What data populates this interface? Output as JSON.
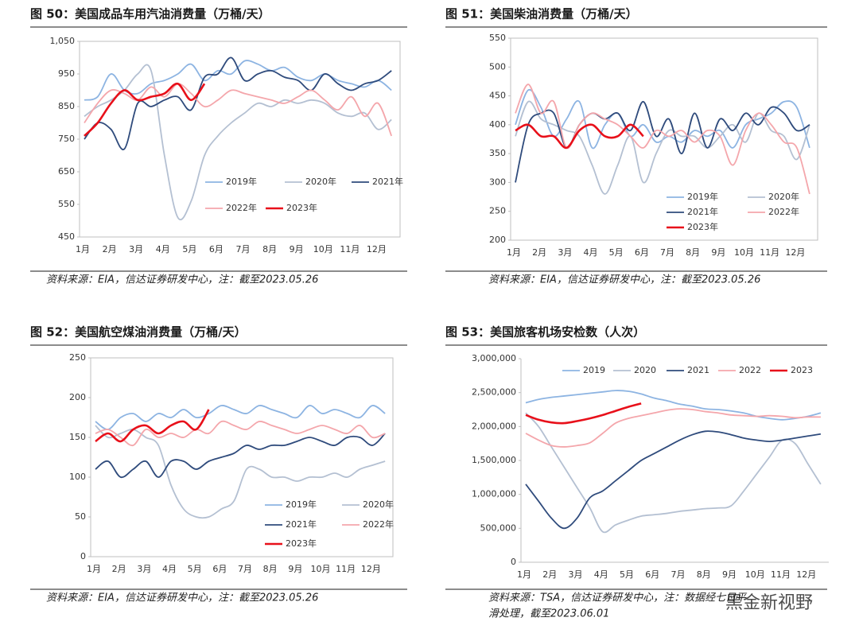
{
  "chart_data": [
    {
      "type": "line",
      "title": "图 50：美国成品车用汽油消费量（万桶/天）",
      "note": "资料来源：EIA，信达证券研发中心，注：截至2023.05.26",
      "categories": [
        "1月",
        null,
        "2月",
        null,
        "3月",
        null,
        "4月",
        null,
        "5月",
        null,
        "6月",
        null,
        "7月",
        null,
        "8月",
        null,
        "9月",
        null,
        "10月",
        null,
        "11月",
        null,
        "12月",
        null
      ],
      "ylim": [
        450,
        1050
      ],
      "yticks": [
        450,
        550,
        650,
        750,
        850,
        950,
        {
          "value": 1050,
          "label": "1,050"
        }
      ],
      "series": [
        {
          "name": "2019年",
          "color": "#8db4e2",
          "values": [
            870,
            880,
            950,
            900,
            890,
            920,
            930,
            950,
            980,
            930,
            960,
            950,
            990,
            980,
            960,
            970,
            940,
            930,
            950,
            930,
            920,
            910,
            930,
            900
          ]
        },
        {
          "name": "2020年",
          "color": "#b4c0d2",
          "values": [
            820,
            850,
            870,
            900,
            950,
            960,
            700,
            510,
            560,
            700,
            760,
            800,
            830,
            860,
            850,
            870,
            860,
            870,
            860,
            830,
            820,
            830,
            780,
            810
          ]
        },
        {
          "name": "2021年",
          "color": "#2f4b7c",
          "values": [
            750,
            800,
            780,
            720,
            860,
            850,
            870,
            880,
            840,
            940,
            950,
            1000,
            930,
            950,
            960,
            940,
            930,
            900,
            950,
            920,
            900,
            920,
            930,
            960
          ]
        },
        {
          "name": "2022年",
          "color": "#f4a6ab",
          "values": [
            800,
            860,
            900,
            890,
            870,
            910,
            880,
            920,
            890,
            850,
            870,
            900,
            890,
            880,
            870,
            860,
            880,
            900,
            870,
            840,
            880,
            820,
            860,
            760
          ]
        },
        {
          "name": "2023年",
          "color": "#e8101a",
          "values": [
            760,
            800,
            860,
            900,
            870,
            880,
            890,
            920,
            870,
            920,
            null,
            null,
            null,
            null,
            null,
            null,
            null,
            null,
            null,
            null,
            null,
            null,
            null,
            null
          ]
        }
      ]
    },
    {
      "type": "line",
      "title": "图 51：美国柴油消费量（万桶/天）",
      "note": "资料来源：EIA，信达证券研发中心，注：截至2023.05.26",
      "categories": [
        "1月",
        null,
        "2月",
        null,
        "3月",
        null,
        "4月",
        null,
        "5月",
        null,
        "6月",
        null,
        "7月",
        null,
        "8月",
        null,
        "9月",
        null,
        "10月",
        null,
        "11月",
        null,
        "12月",
        null
      ],
      "ylim": [
        200,
        550
      ],
      "yticks": [
        200,
        250,
        300,
        350,
        400,
        450,
        500,
        550
      ],
      "series": [
        {
          "name": "2019年",
          "color": "#8db4e2",
          "values": [
            400,
            460,
            430,
            380,
            410,
            440,
            360,
            400,
            420,
            380,
            400,
            370,
            380,
            370,
            390,
            380,
            390,
            360,
            400,
            410,
            420,
            440,
            430,
            360
          ]
        },
        {
          "name": "2020年",
          "color": "#b4c0d2",
          "values": [
            380,
            440,
            410,
            400,
            390,
            380,
            330,
            280,
            330,
            380,
            300,
            350,
            390,
            380,
            380,
            360,
            380,
            400,
            370,
            420,
            390,
            380,
            340,
            400
          ]
        },
        {
          "name": "2021年",
          "color": "#2f4b7c",
          "values": [
            300,
            400,
            420,
            420,
            360,
            400,
            420,
            410,
            420,
            390,
            440,
            380,
            410,
            350,
            420,
            360,
            410,
            390,
            420,
            400,
            430,
            420,
            390,
            400
          ]
        },
        {
          "name": "2022年",
          "color": "#f4a6ab",
          "values": [
            420,
            470,
            420,
            440,
            360,
            400,
            420,
            410,
            400,
            380,
            360,
            390,
            380,
            390,
            370,
            390,
            380,
            330,
            390,
            420,
            400,
            370,
            360,
            280
          ]
        },
        {
          "name": "2023年",
          "color": "#e8101a",
          "values": [
            390,
            400,
            380,
            380,
            360,
            390,
            400,
            380,
            380,
            400,
            380,
            null,
            null,
            null,
            null,
            null,
            null,
            null,
            null,
            null,
            null,
            null,
            null,
            null
          ]
        }
      ]
    },
    {
      "type": "line",
      "title": "图 52：美国航空煤油消费量（万桶/天）",
      "note": "资料来源：EIA，信达证券研发中心，注：截至2023.05.26",
      "categories": [
        "1月",
        null,
        "2月",
        null,
        "3月",
        null,
        "4月",
        null,
        "5月",
        null,
        "6月",
        null,
        "7月",
        null,
        "8月",
        null,
        "9月",
        null,
        "10月",
        null,
        "11月",
        null,
        "12月",
        null
      ],
      "ylim": [
        0,
        250
      ],
      "yticks": [
        0,
        50,
        100,
        150,
        200,
        250
      ],
      "series": [
        {
          "name": "2019年",
          "color": "#8db4e2",
          "values": [
            170,
            160,
            175,
            180,
            170,
            180,
            175,
            185,
            175,
            180,
            190,
            185,
            180,
            190,
            185,
            180,
            175,
            190,
            180,
            185,
            180,
            175,
            190,
            180
          ]
        },
        {
          "name": "2020年",
          "color": "#b4c0d2",
          "values": [
            165,
            150,
            155,
            160,
            150,
            140,
            90,
            60,
            50,
            50,
            60,
            70,
            110,
            110,
            100,
            100,
            95,
            100,
            100,
            105,
            100,
            110,
            115,
            120
          ]
        },
        {
          "name": "2021年",
          "color": "#2f4b7c",
          "values": [
            110,
            120,
            100,
            110,
            120,
            100,
            120,
            120,
            110,
            120,
            125,
            130,
            140,
            135,
            140,
            140,
            145,
            150,
            145,
            140,
            150,
            150,
            140,
            155
          ]
        },
        {
          "name": "2022年",
          "color": "#f4a6ab",
          "values": [
            155,
            160,
            150,
            140,
            160,
            150,
            155,
            150,
            160,
            155,
            170,
            165,
            160,
            170,
            165,
            160,
            155,
            160,
            165,
            160,
            155,
            165,
            150,
            155
          ]
        },
        {
          "name": "2023年",
          "color": "#e8101a",
          "values": [
            145,
            155,
            145,
            160,
            165,
            155,
            165,
            170,
            160,
            185,
            null,
            null,
            null,
            null,
            null,
            null,
            null,
            null,
            null,
            null,
            null,
            null,
            null,
            null
          ]
        }
      ]
    },
    {
      "type": "line",
      "title": "图 53：美国旅客机场安检数（人次）",
      "note": "资料来源：TSA，信达证券研发中心，注：数据经七日平",
      "note2": "滑处理，截至2023.06.01",
      "categories": [
        "1月",
        null,
        "2月",
        null,
        "3月",
        null,
        "4月",
        null,
        "5月",
        null,
        "6月",
        null,
        "7月",
        null,
        "8月",
        null,
        "9月",
        null,
        "10月",
        null,
        "11月",
        null,
        "12月",
        null
      ],
      "ylim": [
        0,
        3000000
      ],
      "yticks": [
        0,
        {
          "value": 500000,
          "label": "500,000"
        },
        {
          "value": 1000000,
          "label": "1,000,000"
        },
        {
          "value": 1500000,
          "label": "1,500,000"
        },
        {
          "value": 2000000,
          "label": "2,000,000"
        },
        {
          "value": 2500000,
          "label": "2,500,000"
        },
        {
          "value": 3000000,
          "label": "3,000,000"
        }
      ],
      "series": [
        {
          "name": "2019",
          "color": "#8db4e2",
          "values": [
            2350000,
            2400000,
            2430000,
            2450000,
            2470000,
            2490000,
            2510000,
            2530000,
            2520000,
            2480000,
            2420000,
            2380000,
            2330000,
            2300000,
            2260000,
            2250000,
            2230000,
            2200000,
            2150000,
            2120000,
            2100000,
            2120000,
            2150000,
            2200000
          ]
        },
        {
          "name": "2020",
          "color": "#b4c0d2",
          "values": [
            2200000,
            2000000,
            1700000,
            1400000,
            1100000,
            800000,
            450000,
            550000,
            620000,
            680000,
            700000,
            720000,
            750000,
            770000,
            790000,
            800000,
            830000,
            1050000,
            1300000,
            1550000,
            1800000,
            1750000,
            1450000,
            1150000
          ]
        },
        {
          "name": "2021",
          "color": "#2f4b7c",
          "values": [
            1150000,
            900000,
            650000,
            500000,
            650000,
            950000,
            1050000,
            1200000,
            1350000,
            1500000,
            1600000,
            1700000,
            1800000,
            1880000,
            1930000,
            1920000,
            1880000,
            1830000,
            1800000,
            1780000,
            1800000,
            1830000,
            1860000,
            1890000
          ]
        },
        {
          "name": "2022",
          "color": "#f4a6ab",
          "values": [
            1900000,
            1800000,
            1720000,
            1700000,
            1720000,
            1760000,
            1900000,
            2050000,
            2120000,
            2160000,
            2200000,
            2240000,
            2260000,
            2250000,
            2220000,
            2200000,
            2170000,
            2160000,
            2150000,
            2160000,
            2150000,
            2130000,
            2140000,
            2140000
          ]
        },
        {
          "name": "2023",
          "color": "#e8101a",
          "values": [
            2170000,
            2100000,
            2060000,
            2050000,
            2080000,
            2120000,
            2170000,
            2230000,
            2290000,
            2340000,
            null,
            null,
            null,
            null,
            null,
            null,
            null,
            null,
            null,
            null,
            null,
            null,
            null,
            null
          ]
        }
      ]
    }
  ],
  "watermark": "黑金新视野"
}
